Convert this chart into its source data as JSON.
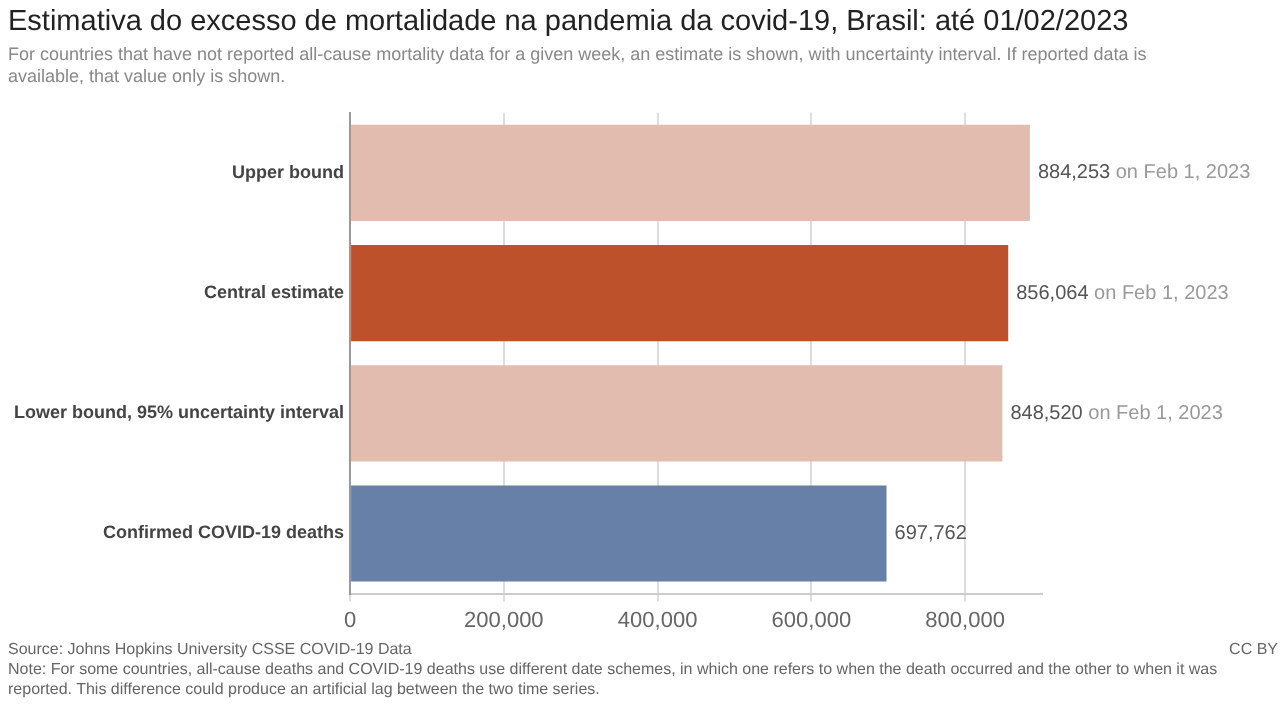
{
  "chart_data": {
    "type": "bar",
    "orientation": "horizontal",
    "title": "Estimativa do excesso de mortalidade na pandemia da covid-19, Brasil: até 01/02/2023",
    "subtitle": "For countries that have not reported all-cause mortality data for a given week, an estimate is shown, with uncertainty interval. If reported data is available, that value only is shown.",
    "categories": [
      "Upper bound",
      "Central estimate",
      "Lower bound, 95% uncertainty interval",
      "Confirmed COVID-19 deaths"
    ],
    "values": [
      884253,
      856064,
      848520,
      697762
    ],
    "colors": [
      "#e2bcae",
      "#bc512c",
      "#e2bcae",
      "#6780a8"
    ],
    "value_labels": [
      "884,253 on Feb 1, 2023",
      "856,064 on Feb 1, 2023",
      "848,520 on Feb 1, 2023",
      "697,762"
    ],
    "xlim": [
      0,
      900000
    ],
    "xticks": [
      {
        "value": 0,
        "label": "0"
      },
      {
        "value": 200000,
        "label": "200,000"
      },
      {
        "value": 400000,
        "label": "400,000"
      },
      {
        "value": 600000,
        "label": "600,000"
      },
      {
        "value": 800000,
        "label": "800,000"
      }
    ],
    "grid": "x",
    "annotations": [
      "Source: Johns Hopkins University CSSE COVID-19 Data",
      "CC BY",
      "Note: For some countries, all-cause deaths and COVID-19 deaths use different date schemes, in which one refers to when the death occurred and the other to when it was reported. This difference could produce an artificial lag between the two time series."
    ]
  }
}
